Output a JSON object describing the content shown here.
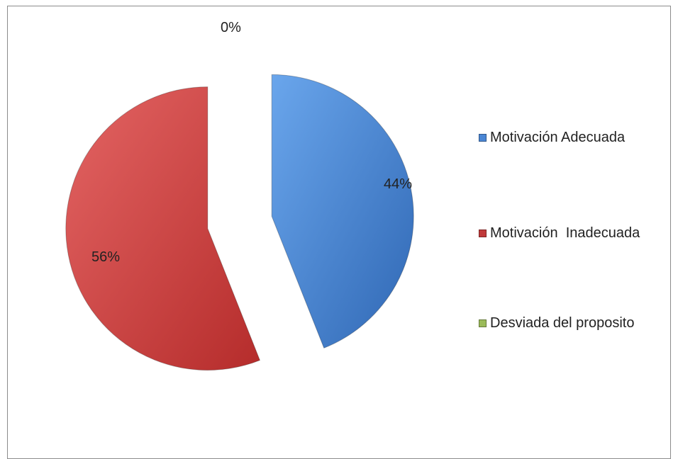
{
  "chart_data": {
    "type": "pie",
    "title": "",
    "exploded": true,
    "legend_position": "right",
    "slices": [
      {
        "name": "Motivación Adecuada",
        "value": 44,
        "label": "44%",
        "color": "#4a86d4"
      },
      {
        "name": "Motivación  Inadecuada",
        "value": 56,
        "label": "56%",
        "color": "#d2403f"
      },
      {
        "name": "Desviada del proposito",
        "value": 0,
        "label": "0%",
        "color": "#9bbb59"
      }
    ]
  }
}
